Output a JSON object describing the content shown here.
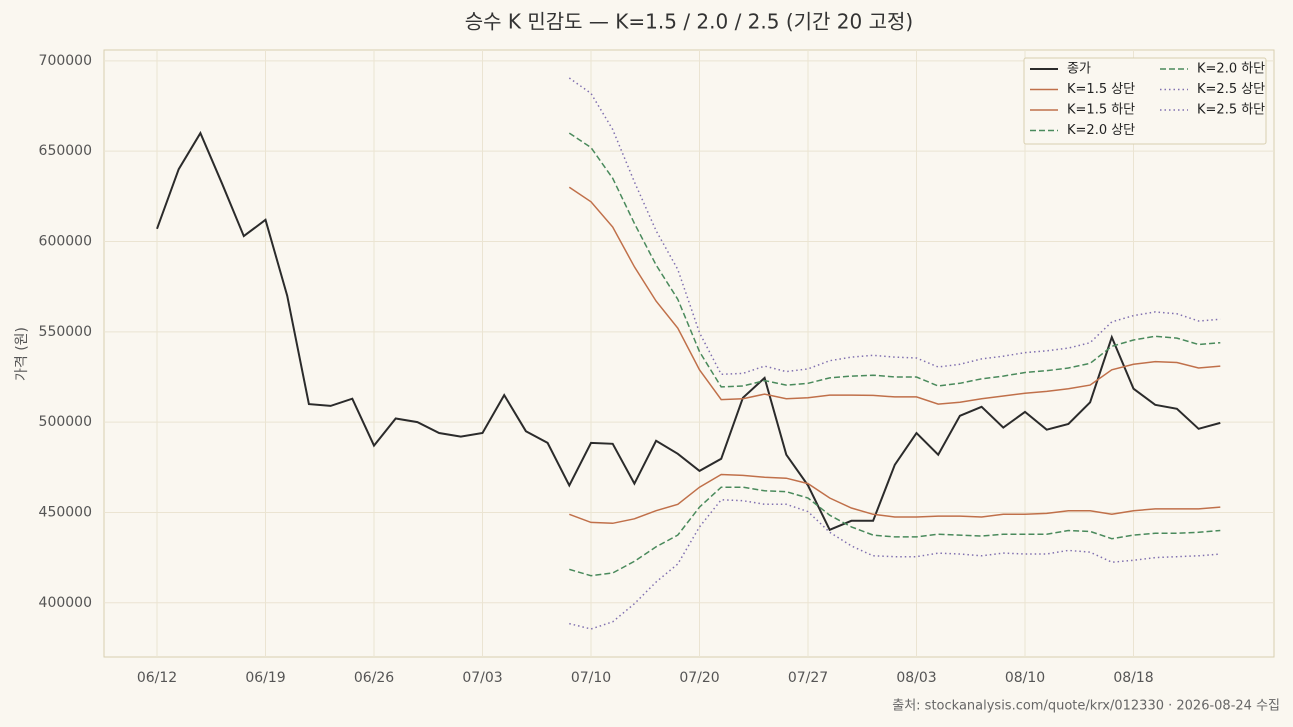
{
  "chart_data": {
    "type": "line",
    "title": "승수 K 민감도 — K=1.5 / 2.0 / 2.5 (기간 20 고정)",
    "y_label": "가격 (원)",
    "source": "출처: stockanalysis.com/quote/krx/012330 · 2026-08-24 수집",
    "categories": [
      "06/12",
      null,
      null,
      null,
      null,
      "06/19",
      null,
      null,
      null,
      null,
      "06/26",
      null,
      null,
      null,
      null,
      "07/03",
      null,
      null,
      null,
      null,
      "07/10",
      null,
      null,
      null,
      null,
      "07/20",
      null,
      null,
      null,
      null,
      "07/27",
      null,
      null,
      null,
      null,
      "08/03",
      null,
      null,
      null,
      null,
      "08/10",
      null,
      null,
      null,
      null,
      "08/18",
      null,
      null,
      null,
      null
    ],
    "ylim": [
      370000,
      706000
    ],
    "yticks": [
      400000,
      450000,
      500000,
      550000,
      600000,
      650000,
      700000
    ],
    "grid": true,
    "legend": "upper-right",
    "series": [
      {
        "name": "종가",
        "color": "#2b2b2b",
        "style": "solid",
        "values": [
          607000,
          640000,
          660000,
          632000,
          603000,
          612000,
          570000,
          510000,
          509000,
          513000,
          487000,
          502000,
          500000,
          494000,
          492000,
          494000,
          515000,
          495000,
          488500,
          465000,
          488500,
          488000,
          466000,
          489700,
          482500,
          473000,
          479700,
          513500,
          524500,
          482000,
          465000,
          440400,
          445400,
          445400,
          476400,
          494000,
          482000,
          503500,
          508500,
          497000,
          505700,
          495800,
          499000,
          511000,
          547000,
          518500,
          509600,
          507400,
          496300,
          499600
        ]
      },
      {
        "name": "K=1.5 상단",
        "color": "#c0704a",
        "style": "solid",
        "values": [
          null,
          null,
          null,
          null,
          null,
          null,
          null,
          null,
          null,
          null,
          null,
          null,
          null,
          null,
          null,
          null,
          null,
          null,
          null,
          630000,
          622000,
          608000,
          586000,
          567000,
          552000,
          529000,
          512500,
          513000,
          515500,
          513000,
          513500,
          515000,
          515000,
          514800,
          514000,
          514000,
          510000,
          511000,
          513000,
          514500,
          516000,
          517000,
          518500,
          520500,
          529000,
          532000,
          533500,
          533000,
          530000,
          531000
        ]
      },
      {
        "name": "K=1.5 하단",
        "color": "#c0704a",
        "style": "solid",
        "values": [
          null,
          null,
          null,
          null,
          null,
          null,
          null,
          null,
          null,
          null,
          null,
          null,
          null,
          null,
          null,
          null,
          null,
          null,
          null,
          449000,
          444500,
          444000,
          446500,
          451000,
          454500,
          464000,
          471000,
          470500,
          469500,
          469000,
          466000,
          458000,
          452500,
          449000,
          447500,
          447500,
          448000,
          448000,
          447500,
          449000,
          449000,
          449500,
          451000,
          451000,
          449000,
          451000,
          452000,
          452000,
          452000,
          453000
        ]
      },
      {
        "name": "K=2.0 상단",
        "color": "#4a8a5c",
        "style": "dashed",
        "values": [
          null,
          null,
          null,
          null,
          null,
          null,
          null,
          null,
          null,
          null,
          null,
          null,
          null,
          null,
          null,
          null,
          null,
          null,
          null,
          660000,
          652000,
          635000,
          610000,
          587000,
          568000,
          539000,
          519500,
          520000,
          523000,
          520500,
          521500,
          524500,
          525500,
          526000,
          525000,
          525000,
          520000,
          521500,
          524000,
          525500,
          527500,
          528500,
          530000,
          532500,
          542000,
          545500,
          547500,
          546500,
          543000,
          544000
        ]
      },
      {
        "name": "K=2.0 하단",
        "color": "#4a8a5c",
        "style": "dashed",
        "values": [
          null,
          null,
          null,
          null,
          null,
          null,
          null,
          null,
          null,
          null,
          null,
          null,
          null,
          null,
          null,
          null,
          null,
          null,
          null,
          418500,
          415000,
          416500,
          423000,
          431000,
          437500,
          453000,
          464000,
          464000,
          462000,
          461500,
          458000,
          448500,
          442000,
          437500,
          436500,
          436500,
          438000,
          437500,
          437000,
          438000,
          438000,
          438000,
          440000,
          439500,
          435500,
          437500,
          438500,
          438500,
          439000,
          440000
        ]
      },
      {
        "name": "K=2.5 상단",
        "color": "#8070b0",
        "style": "dotted",
        "values": [
          null,
          null,
          null,
          null,
          null,
          null,
          null,
          null,
          null,
          null,
          null,
          null,
          null,
          null,
          null,
          null,
          null,
          null,
          null,
          690500,
          682000,
          662000,
          633000,
          606000,
          584500,
          549500,
          526500,
          527000,
          531000,
          528000,
          529500,
          534000,
          536000,
          537000,
          536000,
          535500,
          530500,
          532000,
          535000,
          536500,
          538500,
          539500,
          541000,
          544000,
          555500,
          559000,
          561000,
          560000,
          556000,
          557000
        ]
      },
      {
        "name": "K=2.5 하단",
        "color": "#8070b0",
        "style": "dotted",
        "values": [
          null,
          null,
          null,
          null,
          null,
          null,
          null,
          null,
          null,
          null,
          null,
          null,
          null,
          null,
          null,
          null,
          null,
          null,
          null,
          388500,
          385500,
          389500,
          399500,
          411500,
          421500,
          442000,
          457000,
          456500,
          454500,
          454500,
          450500,
          439000,
          431500,
          426000,
          425500,
          425500,
          427500,
          427000,
          426000,
          427500,
          427000,
          427000,
          429000,
          428000,
          422500,
          423500,
          425000,
          425500,
          426000,
          427000
        ]
      }
    ]
  }
}
